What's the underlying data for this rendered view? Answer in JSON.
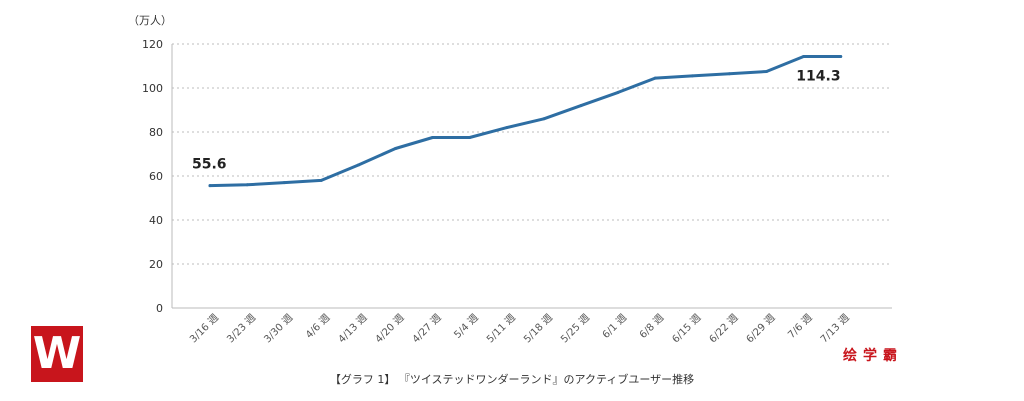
{
  "chart_data": {
    "type": "line",
    "unit_label": "（万人）",
    "ylim": [
      0,
      120
    ],
    "yticks": [
      0,
      20,
      40,
      60,
      80,
      100,
      120
    ],
    "grid": true,
    "categories": [
      "3/16 週",
      "3/23 週",
      "3/30 週",
      "4/6 週",
      "4/13 週",
      "4/20 週",
      "4/27 週",
      "5/4 週",
      "5/11 週",
      "5/18 週",
      "5/25 週",
      "6/1 週",
      "6/8 週",
      "6/15 週",
      "6/22 週",
      "6/29 週",
      "7/6 週",
      "7/13 週"
    ],
    "series": [
      {
        "values": [
          55.6,
          56.0,
          57.0,
          58.0,
          65.0,
          72.5,
          77.5,
          77.5,
          82.0,
          86.0,
          92.0,
          98.0,
          104.5,
          105.5,
          106.5,
          107.5,
          114.3,
          114.3
        ],
        "color": "#2e6ea3"
      }
    ],
    "annotations": [
      {
        "index": 0,
        "text": "55.6"
      },
      {
        "index": 16,
        "text": "114.3"
      }
    ],
    "caption": "【グラフ 1】 『ツイステッドワンダーランド』のアクティブユーザー推移"
  },
  "logo": {
    "text": "W",
    "color": "#c8151c"
  },
  "brand": {
    "text": "绘学霸",
    "color": "#c8151c"
  }
}
